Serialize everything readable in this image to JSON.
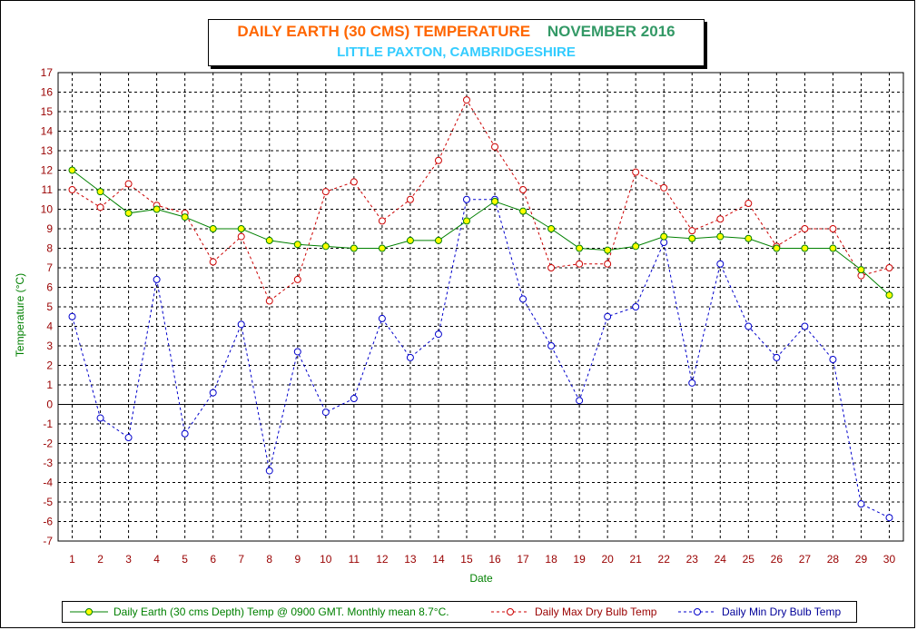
{
  "chart_data": {
    "type": "line",
    "title": "DAILY EARTH (30 CMS) TEMPERATURE",
    "title_month": "NOVEMBER 2016",
    "subtitle": "LITTLE PAXTON, CAMBRIDGESHIRE",
    "xlabel": "Date",
    "ylabel": "Temperature (°C)",
    "ylim": [
      -7,
      17
    ],
    "grid": true,
    "legend_position": "bottom",
    "x": [
      1,
      2,
      3,
      4,
      5,
      6,
      7,
      8,
      9,
      10,
      11,
      12,
      13,
      14,
      15,
      16,
      17,
      18,
      19,
      20,
      21,
      22,
      23,
      24,
      25,
      26,
      27,
      28,
      29,
      30
    ],
    "series": [
      {
        "name": "Daily Earth (30 cms Depth) Temp @ 0900 GMT. Monthly mean 8.7°C.",
        "color": "#008000",
        "marker_fill": "#ffff00",
        "style": "solid",
        "values": [
          12.0,
          10.9,
          9.8,
          10.0,
          9.6,
          9.0,
          9.0,
          8.4,
          8.2,
          8.1,
          8.0,
          8.0,
          8.4,
          8.4,
          9.4,
          10.4,
          9.9,
          9.0,
          8.0,
          7.9,
          8.1,
          8.6,
          8.5,
          8.6,
          8.5,
          8.0,
          8.0,
          8.0,
          6.9,
          5.6
        ]
      },
      {
        "name": "Daily Max Dry Bulb Temp",
        "color": "#cc0000",
        "style": "dashed",
        "values": [
          11.0,
          10.1,
          11.3,
          10.2,
          9.8,
          7.3,
          8.6,
          5.3,
          6.4,
          10.9,
          11.4,
          9.4,
          10.5,
          12.5,
          15.6,
          13.2,
          11.0,
          7.0,
          7.2,
          7.2,
          11.9,
          11.1,
          8.9,
          9.5,
          10.3,
          8.1,
          9.0,
          9.0,
          6.6,
          7.0
        ]
      },
      {
        "name": "Daily Min Dry Bulb Temp",
        "color": "#0000cc",
        "style": "dashed",
        "values": [
          4.5,
          -0.7,
          -1.7,
          6.4,
          -1.5,
          0.6,
          4.1,
          -3.4,
          2.7,
          -0.4,
          0.3,
          4.4,
          2.4,
          3.6,
          10.5,
          10.5,
          5.4,
          3.0,
          0.2,
          4.5,
          5.0,
          8.3,
          1.1,
          7.2,
          4.0,
          2.4,
          4.0,
          2.3,
          -5.1,
          -5.8
        ]
      }
    ]
  }
}
